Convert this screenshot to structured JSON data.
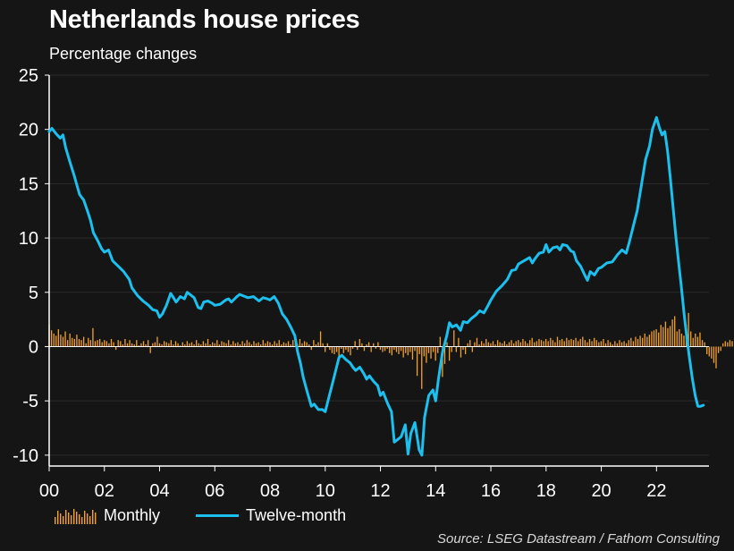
{
  "title": "Netherlands house prices",
  "subtitle": "Percentage changes",
  "source": "Source: LSEG Datastream / Fathom Consulting",
  "colors": {
    "background": "#151515",
    "monthly": "#f4a22d",
    "twelve_month": "#1cc0ef",
    "grid": "#2b2b2b",
    "axis": "#ffffff"
  },
  "legend": [
    {
      "label": "Monthly",
      "color": "#f4a22d",
      "style": "bars"
    },
    {
      "label": "Twelve-month",
      "color": "#1cc0ef",
      "style": "line"
    }
  ],
  "chart_data": {
    "type": "line",
    "xlim": [
      2000,
      2023.9
    ],
    "ylim": [
      -11,
      25
    ],
    "yticks": [
      25,
      20,
      15,
      10,
      5,
      0,
      -5,
      -10
    ],
    "xticks": [
      {
        "value": 2000,
        "label": "00"
      },
      {
        "value": 2002,
        "label": "02"
      },
      {
        "value": 2004,
        "label": "04"
      },
      {
        "value": 2006,
        "label": "06"
      },
      {
        "value": 2008,
        "label": "08"
      },
      {
        "value": 2010,
        "label": "10"
      },
      {
        "value": 2012,
        "label": "12"
      },
      {
        "value": 2014,
        "label": "14"
      },
      {
        "value": 2016,
        "label": "16"
      },
      {
        "value": 2018,
        "label": "18"
      },
      {
        "value": 2020,
        "label": "20"
      },
      {
        "value": 2022,
        "label": "22"
      }
    ],
    "grid": true,
    "legend_position": "bottom-left",
    "series": [
      {
        "name": "Twelve-month",
        "kind": "line",
        "points": [
          [
            2000.0,
            19.8
          ],
          [
            2000.1,
            20.1
          ],
          [
            2000.25,
            19.6
          ],
          [
            2000.4,
            19.2
          ],
          [
            2000.5,
            19.5
          ],
          [
            2000.6,
            18.3
          ],
          [
            2000.75,
            17.0
          ],
          [
            2000.9,
            15.8
          ],
          [
            2001.0,
            14.9
          ],
          [
            2001.1,
            14.0
          ],
          [
            2001.25,
            13.5
          ],
          [
            2001.4,
            12.4
          ],
          [
            2001.5,
            11.6
          ],
          [
            2001.6,
            10.5
          ],
          [
            2001.75,
            9.8
          ],
          [
            2001.9,
            9.0
          ],
          [
            2002.0,
            8.7
          ],
          [
            2002.15,
            8.9
          ],
          [
            2002.3,
            7.9
          ],
          [
            2002.5,
            7.4
          ],
          [
            2002.7,
            6.9
          ],
          [
            2002.9,
            6.2
          ],
          [
            2003.0,
            5.4
          ],
          [
            2003.2,
            4.7
          ],
          [
            2003.4,
            4.2
          ],
          [
            2003.6,
            3.8
          ],
          [
            2003.75,
            3.4
          ],
          [
            2003.9,
            3.3
          ],
          [
            2004.0,
            2.7
          ],
          [
            2004.1,
            3.0
          ],
          [
            2004.25,
            3.8
          ],
          [
            2004.4,
            4.9
          ],
          [
            2004.5,
            4.5
          ],
          [
            2004.6,
            4.1
          ],
          [
            2004.75,
            4.6
          ],
          [
            2004.9,
            4.4
          ],
          [
            2005.0,
            5.0
          ],
          [
            2005.1,
            4.8
          ],
          [
            2005.25,
            4.5
          ],
          [
            2005.4,
            3.6
          ],
          [
            2005.5,
            3.5
          ],
          [
            2005.6,
            4.1
          ],
          [
            2005.75,
            4.2
          ],
          [
            2005.9,
            4.0
          ],
          [
            2006.0,
            3.8
          ],
          [
            2006.2,
            3.9
          ],
          [
            2006.4,
            4.3
          ],
          [
            2006.5,
            4.4
          ],
          [
            2006.6,
            4.1
          ],
          [
            2006.8,
            4.6
          ],
          [
            2006.9,
            4.8
          ],
          [
            2007.0,
            4.7
          ],
          [
            2007.2,
            4.5
          ],
          [
            2007.4,
            4.6
          ],
          [
            2007.6,
            4.2
          ],
          [
            2007.75,
            4.5
          ],
          [
            2007.9,
            4.4
          ],
          [
            2008.0,
            4.3
          ],
          [
            2008.15,
            4.6
          ],
          [
            2008.3,
            4.0
          ],
          [
            2008.45,
            3.0
          ],
          [
            2008.6,
            2.5
          ],
          [
            2008.75,
            1.8
          ],
          [
            2008.9,
            1.0
          ],
          [
            2009.0,
            -0.5
          ],
          [
            2009.1,
            -1.5
          ],
          [
            2009.2,
            -2.8
          ],
          [
            2009.35,
            -4.2
          ],
          [
            2009.5,
            -5.5
          ],
          [
            2009.6,
            -5.3
          ],
          [
            2009.75,
            -5.8
          ],
          [
            2009.9,
            -5.8
          ],
          [
            2010.0,
            -6.0
          ],
          [
            2010.15,
            -4.5
          ],
          [
            2010.3,
            -3.0
          ],
          [
            2010.4,
            -2.0
          ],
          [
            2010.5,
            -1.0
          ],
          [
            2010.6,
            -0.8
          ],
          [
            2010.75,
            -1.2
          ],
          [
            2010.9,
            -1.5
          ],
          [
            2011.0,
            -1.9
          ],
          [
            2011.1,
            -2.2
          ],
          [
            2011.25,
            -1.9
          ],
          [
            2011.4,
            -2.5
          ],
          [
            2011.5,
            -3.0
          ],
          [
            2011.6,
            -2.7
          ],
          [
            2011.75,
            -3.2
          ],
          [
            2011.9,
            -3.6
          ],
          [
            2012.0,
            -4.5
          ],
          [
            2012.1,
            -4.2
          ],
          [
            2012.25,
            -5.2
          ],
          [
            2012.4,
            -6.0
          ],
          [
            2012.5,
            -8.8
          ],
          [
            2012.6,
            -8.6
          ],
          [
            2012.75,
            -8.3
          ],
          [
            2012.9,
            -7.2
          ],
          [
            2013.0,
            -9.9
          ],
          [
            2013.1,
            -8.0
          ],
          [
            2013.25,
            -7.0
          ],
          [
            2013.4,
            -9.5
          ],
          [
            2013.5,
            -10.0
          ],
          [
            2013.6,
            -6.5
          ],
          [
            2013.75,
            -4.5
          ],
          [
            2013.9,
            -4.0
          ],
          [
            2014.0,
            -5.0
          ],
          [
            2014.1,
            -3.0
          ],
          [
            2014.25,
            -0.5
          ],
          [
            2014.4,
            1.0
          ],
          [
            2014.5,
            2.2
          ],
          [
            2014.6,
            1.8
          ],
          [
            2014.75,
            2.0
          ],
          [
            2014.9,
            1.5
          ],
          [
            2015.0,
            2.3
          ],
          [
            2015.15,
            2.2
          ],
          [
            2015.3,
            2.6
          ],
          [
            2015.45,
            2.9
          ],
          [
            2015.6,
            3.3
          ],
          [
            2015.75,
            3.1
          ],
          [
            2015.9,
            3.8
          ],
          [
            2016.0,
            4.3
          ],
          [
            2016.2,
            5.1
          ],
          [
            2016.4,
            5.6
          ],
          [
            2016.6,
            6.2
          ],
          [
            2016.75,
            7.0
          ],
          [
            2016.9,
            7.1
          ],
          [
            2017.0,
            7.6
          ],
          [
            2017.2,
            7.9
          ],
          [
            2017.4,
            8.2
          ],
          [
            2017.5,
            7.7
          ],
          [
            2017.6,
            8.1
          ],
          [
            2017.75,
            8.6
          ],
          [
            2017.9,
            8.7
          ],
          [
            2018.0,
            9.4
          ],
          [
            2018.1,
            8.7
          ],
          [
            2018.25,
            9.1
          ],
          [
            2018.4,
            9.2
          ],
          [
            2018.5,
            8.9
          ],
          [
            2018.6,
            9.4
          ],
          [
            2018.75,
            9.3
          ],
          [
            2018.9,
            8.8
          ],
          [
            2019.0,
            8.7
          ],
          [
            2019.1,
            7.9
          ],
          [
            2019.25,
            7.4
          ],
          [
            2019.4,
            6.6
          ],
          [
            2019.5,
            6.1
          ],
          [
            2019.6,
            6.9
          ],
          [
            2019.75,
            6.6
          ],
          [
            2019.9,
            7.2
          ],
          [
            2020.0,
            7.3
          ],
          [
            2020.2,
            7.7
          ],
          [
            2020.4,
            7.8
          ],
          [
            2020.6,
            8.5
          ],
          [
            2020.75,
            8.9
          ],
          [
            2020.9,
            8.6
          ],
          [
            2021.0,
            9.5
          ],
          [
            2021.15,
            11.0
          ],
          [
            2021.3,
            12.5
          ],
          [
            2021.45,
            14.8
          ],
          [
            2021.6,
            17.2
          ],
          [
            2021.75,
            18.5
          ],
          [
            2021.85,
            20.0
          ],
          [
            2022.0,
            21.1
          ],
          [
            2022.1,
            20.2
          ],
          [
            2022.2,
            19.5
          ],
          [
            2022.3,
            19.8
          ],
          [
            2022.4,
            18.0
          ],
          [
            2022.5,
            15.5
          ],
          [
            2022.6,
            12.8
          ],
          [
            2022.7,
            10.2
          ],
          [
            2022.8,
            7.8
          ],
          [
            2022.9,
            5.5
          ],
          [
            2023.0,
            3.0
          ],
          [
            2023.1,
            0.8
          ],
          [
            2023.2,
            -1.2
          ],
          [
            2023.3,
            -3.0
          ],
          [
            2023.4,
            -4.5
          ],
          [
            2023.5,
            -5.5
          ],
          [
            2023.6,
            -5.5
          ],
          [
            2023.7,
            -5.4
          ]
        ]
      },
      {
        "name": "Monthly",
        "kind": "bar",
        "x_start": 2000.0,
        "step": 0.0833,
        "values": [
          2.0,
          1.5,
          1.2,
          1.0,
          1.6,
          1.1,
          0.9,
          1.4,
          0.6,
          1.2,
          0.8,
          0.7,
          1.1,
          0.7,
          0.6,
          0.9,
          0.3,
          0.8,
          0.6,
          1.7,
          0.5,
          0.6,
          0.7,
          0.4,
          0.6,
          0.5,
          0.3,
          0.7,
          0.4,
          -0.3,
          0.6,
          0.5,
          0.2,
          0.7,
          0.3,
          0.6,
          0.3,
          0.2,
          0.6,
          0.1,
          0.3,
          0.5,
          0.2,
          0.6,
          -0.6,
          0.3,
          0.4,
          0.9,
          0.3,
          0.2,
          0.5,
          0.4,
          0.3,
          0.6,
          0.2,
          0.5,
          0.3,
          0.1,
          0.4,
          0.2,
          0.5,
          0.3,
          0.4,
          0.2,
          0.6,
          0.3,
          0.2,
          0.5,
          0.3,
          0.7,
          0.2,
          0.4,
          0.3,
          0.6,
          0.2,
          0.5,
          0.4,
          0.3,
          0.6,
          0.2,
          0.5,
          0.3,
          0.4,
          0.2,
          0.5,
          0.3,
          0.6,
          0.4,
          0.2,
          0.5,
          0.3,
          0.4,
          0.2,
          0.6,
          0.3,
          0.5,
          0.4,
          0.2,
          0.5,
          0.3,
          0.6,
          0.2,
          0.4,
          0.3,
          0.5,
          0.2,
          0.6,
          0.3,
          0.2,
          0.7,
          0.3,
          0.5,
          0.4,
          0.2,
          -0.3,
          0.6,
          0.2,
          0.4,
          1.4,
          0.3,
          -0.5,
          0.3,
          -0.3,
          -0.6,
          -0.7,
          -0.5,
          -0.9,
          -0.2,
          -0.6,
          -0.3,
          -0.5,
          -0.8,
          -0.2,
          0.5,
          -0.3,
          0.7,
          0.3,
          -0.4,
          0.2,
          0.4,
          -0.5,
          0.3,
          -0.2,
          0.4,
          -0.3,
          -0.5,
          -0.4,
          -0.2,
          -0.6,
          -0.8,
          -0.3,
          -0.5,
          -0.7,
          -0.4,
          -1.0,
          -0.6,
          -0.8,
          -0.5,
          -1.2,
          -0.4,
          -2.7,
          -0.7,
          -3.9,
          -0.9,
          -1.5,
          -0.6,
          -1.1,
          -0.5,
          -1.3,
          -0.6,
          0.9,
          -2.8,
          -1.6,
          0.4,
          -1.3,
          -0.5,
          1.5,
          -0.5,
          0.8,
          -1.0,
          -0.3,
          -0.7,
          0.3,
          0.6,
          -0.5,
          0.4,
          0.8,
          0.2,
          0.5,
          0.3,
          0.7,
          0.4,
          0.3,
          0.5,
          0.2,
          0.6,
          0.4,
          0.3,
          0.5,
          0.2,
          0.4,
          0.6,
          0.3,
          0.5,
          0.6,
          0.4,
          0.7,
          0.5,
          0.3,
          0.6,
          0.8,
          0.4,
          0.5,
          0.7,
          0.6,
          0.5,
          0.7,
          0.5,
          0.8,
          0.6,
          0.4,
          0.9,
          0.6,
          0.7,
          0.5,
          0.8,
          0.6,
          0.7,
          0.6,
          0.8,
          0.5,
          0.7,
          0.9,
          0.6,
          0.4,
          0.7,
          0.5,
          0.8,
          0.6,
          0.4,
          0.5,
          0.7,
          0.3,
          0.6,
          0.4,
          0.2,
          0.5,
          0.3,
          0.6,
          0.4,
          0.5,
          0.3,
          0.6,
          0.8,
          0.5,
          0.9,
          0.7,
          1.0,
          0.8,
          1.2,
          0.9,
          1.1,
          1.4,
          1.5,
          1.6,
          1.3,
          2.0,
          1.8,
          2.3,
          1.7,
          1.9,
          2.5,
          2.8,
          1.4,
          1.6,
          1.2,
          1.0,
          2.0,
          3.1,
          1.4,
          0.8,
          1.2,
          0.9,
          1.3,
          0.6,
          0.4,
          -0.7,
          -0.9,
          -1.1,
          -1.5,
          -2.0,
          -0.6,
          -0.4,
          0.3,
          0.5,
          0.4,
          0.6,
          0.5
        ]
      }
    ]
  }
}
